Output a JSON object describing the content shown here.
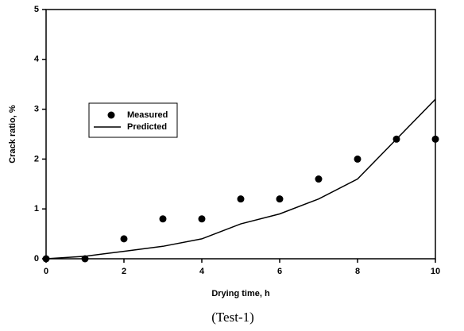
{
  "chart_data": {
    "type": "line",
    "x": [
      0,
      1,
      2,
      3,
      4,
      5,
      6,
      7,
      8,
      9,
      10
    ],
    "series": [
      {
        "name": "Measured",
        "style": "markers",
        "color": "#000000",
        "values": [
          0,
          0,
          0.4,
          0.8,
          0.8,
          1.2,
          1.2,
          1.6,
          2.0,
          2.4,
          2.4
        ]
      },
      {
        "name": "Predicted",
        "style": "line",
        "color": "#000000",
        "values": [
          0,
          0.05,
          0.15,
          0.25,
          0.4,
          0.7,
          0.9,
          1.2,
          1.6,
          2.4,
          3.2
        ]
      }
    ],
    "xlabel": "Drying time, h",
    "ylabel": "Crack ratio, %",
    "caption": "(Test-1)",
    "xlim": [
      0,
      10
    ],
    "xticks": [
      0,
      2,
      4,
      6,
      8,
      10
    ],
    "ylim": [
      0,
      5
    ],
    "yticks": [
      0,
      1,
      2,
      3,
      4,
      5
    ]
  }
}
